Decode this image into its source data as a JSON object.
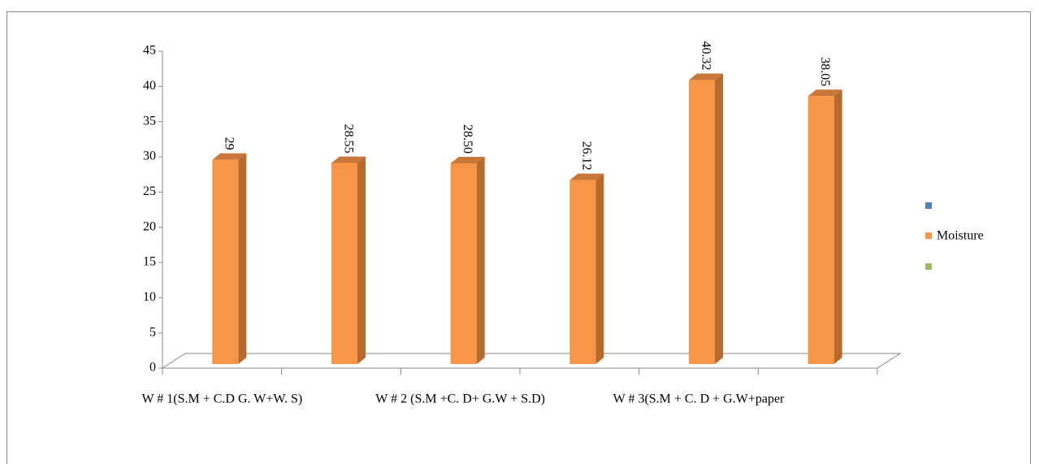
{
  "chart_data": {
    "type": "bar3d",
    "categories": [
      "W # 1(S.M + C.D G. W+W. S)",
      null,
      "W # 2 (S.M +C. D+ G.W + S.D)",
      null,
      "W #  3(S.M + C. D + G.W+paper",
      null
    ],
    "series": [
      {
        "name": "Moisture",
        "color": "#f79646",
        "values": [
          29,
          28.55,
          28.5,
          26.12,
          40.32,
          38.05
        ],
        "value_labels": [
          "29",
          "28.55",
          "28.50",
          "26.12",
          "40.32",
          "38.05"
        ]
      }
    ],
    "ylim": [
      0,
      45
    ],
    "yticks": [
      0,
      5,
      10,
      15,
      20,
      25,
      30,
      35,
      40,
      45
    ]
  }
}
